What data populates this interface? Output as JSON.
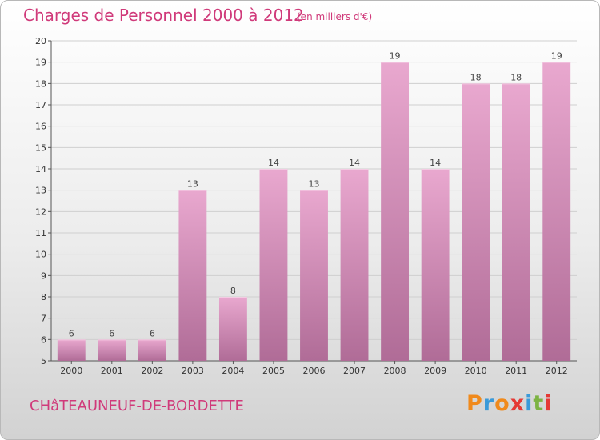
{
  "header": {
    "title": "Charges de Personnel 2000 à 2012",
    "subtitle": "(en milliers d'€)"
  },
  "footer": {
    "commune": "CHâTEAUNEUF-DE-BORDETTE",
    "logo": "Proxiti",
    "logo_colors": [
      "#f08a1c",
      "#3a9ad9",
      "#f08a1c",
      "#e53935",
      "#3a9ad9",
      "#7cb342",
      "#e53935"
    ]
  },
  "colors": {
    "bar_top": "#e9a8cf",
    "bar_bottom": "#b06c97",
    "text_accent": "#d03a7a"
  },
  "chart_data": {
    "type": "bar",
    "title": "Charges de Personnel 2000 à 2012",
    "subtitle": "(en milliers d'€)",
    "xlabel": "",
    "ylabel": "",
    "categories": [
      "2000",
      "2001",
      "2002",
      "2003",
      "2004",
      "2005",
      "2006",
      "2007",
      "2008",
      "2009",
      "2010",
      "2011",
      "2012"
    ],
    "values": [
      6,
      6,
      6,
      13,
      8,
      14,
      13,
      14,
      19,
      14,
      18,
      18,
      19
    ],
    "ylim": [
      5,
      20
    ],
    "yticks": [
      5,
      6,
      7,
      8,
      9,
      10,
      11,
      12,
      13,
      14,
      15,
      16,
      17,
      18,
      19,
      20
    ],
    "grid": true
  }
}
